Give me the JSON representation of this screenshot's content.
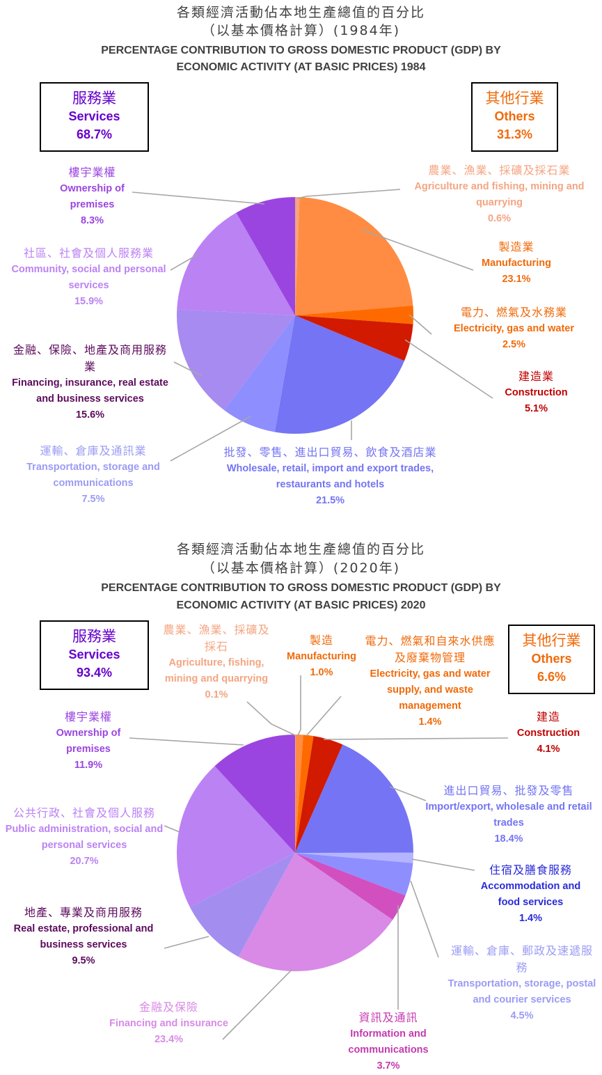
{
  "colors": {
    "services_title": "#6600cc",
    "others_title": "#f06a0a"
  },
  "chart1": {
    "title_zh_1": "各類經濟活動佔本地生產總值的百分比",
    "title_zh_2": "（以基本價格計算）(1984年)",
    "title_en_1": "PERCENTAGE CONTRIBUTION TO GROSS DOMESTIC PRODUCT (GDP) BY",
    "title_en_2": "ECONOMIC ACTIVITY (AT BASIC PRICES) 1984",
    "services_box": {
      "zh": "服務業",
      "en": "Services",
      "pct": "68.7%"
    },
    "others_box": {
      "zh": "其他行業",
      "en": "Others",
      "pct": "31.3%"
    },
    "labels": [
      {
        "zh": "農業、漁業、採礦及採石業",
        "en": "Agriculture and fishing, mining and quarrying",
        "pct": "0.6%"
      },
      {
        "zh": "製造業",
        "en": "Manufacturing",
        "pct": "23.1%"
      },
      {
        "zh": "電力、燃氣及水務業",
        "en": "Electricity, gas and water",
        "pct": "2.5%"
      },
      {
        "zh": "建造業",
        "en": "Construction",
        "pct": "5.1%"
      },
      {
        "zh": "批發、零售、進出口貿易、飲食及酒店業",
        "en": "Wholesale, retail, import and export trades, restaurants and hotels",
        "pct": "21.5%"
      },
      {
        "zh": "運輸、倉庫及通訊業",
        "en": "Transportation, storage and communications",
        "pct": "7.5%"
      },
      {
        "zh": "金融、保險、地產及商用服務業",
        "en": "Financing, insurance, real estate and business services",
        "pct": "15.6%"
      },
      {
        "zh": "社區、社會及個人服務業",
        "en": "Community, social and personal services",
        "pct": "15.9%"
      },
      {
        "zh": "樓宇業權",
        "en": "Ownership of premises",
        "pct": "8.3%"
      }
    ]
  },
  "chart2": {
    "title_zh_1": "各類經濟活動佔本地生產總值的百分比",
    "title_zh_2": "（以基本價格計算）(2020年)",
    "title_en_1": "PERCENTAGE CONTRIBUTION TO GROSS DOMESTIC PRODUCT (GDP) BY",
    "title_en_2": "ECONOMIC ACTIVITY (AT BASIC PRICES) 2020",
    "services_box": {
      "zh": "服務業",
      "en": "Services",
      "pct": "93.4%"
    },
    "others_box": {
      "zh": "其他行業",
      "en": "Others",
      "pct": "6.6%"
    },
    "labels": [
      {
        "zh": "農業、漁業、採礦及採石",
        "en": "Agriculture, fishing, mining and quarrying",
        "pct": "0.1%"
      },
      {
        "zh": "製造",
        "en": "Manufacturing",
        "pct": "1.0%"
      },
      {
        "zh": "電力、燃氣和自來水供應及廢棄物管理",
        "en": "Electricity, gas and water supply, and waste management",
        "pct": "1.4%"
      },
      {
        "zh": "建造",
        "en": "Construction",
        "pct": "4.1%"
      },
      {
        "zh": "進出口貿易、批發及零售",
        "en": "Import/export, wholesale and retail trades",
        "pct": "18.4%"
      },
      {
        "zh": "住宿及膳食服務",
        "en": "Accommodation and food services",
        "pct": "1.4%"
      },
      {
        "zh": "運輸、倉庫、郵政及速遞服務",
        "en": "Transportation, storage, postal and courier services",
        "pct": "4.5%"
      },
      {
        "zh": "資訊及通訊",
        "en": "Information and communications",
        "pct": "3.7%"
      },
      {
        "zh": "金融及保險",
        "en": "Financing and insurance",
        "pct": "23.4%"
      },
      {
        "zh": "地產、專業及商用服務",
        "en": "Real estate, professional and business services",
        "pct": "9.5%"
      },
      {
        "zh": "公共行政、社會及個人服務",
        "en": "Public administration, social and personal services",
        "pct": "20.7%"
      },
      {
        "zh": "樓宇業權",
        "en": "Ownership of premises",
        "pct": "11.9%"
      }
    ]
  },
  "chart_data": [
    {
      "type": "pie",
      "title": "PERCENTAGE CONTRIBUTION TO GROSS DOMESTIC PRODUCT (GDP) BY ECONOMIC ACTIVITY (AT BASIC PRICES) 1984",
      "categories": [
        "Agriculture and fishing, mining and quarrying",
        "Manufacturing",
        "Electricity, gas and water",
        "Construction",
        "Wholesale, retail, import and export trades, restaurants and hotels",
        "Transportation, storage and communications",
        "Financing, insurance, real estate and business services",
        "Community, social and personal services",
        "Ownership of premises"
      ],
      "values": [
        0.6,
        23.1,
        2.5,
        5.1,
        21.5,
        7.5,
        15.6,
        15.9,
        8.3
      ],
      "colors": [
        "#f4a582",
        "#ff8c42",
        "#ff6a00",
        "#d11a00",
        "#7474f4",
        "#8e8eff",
        "#a78bf0",
        "#bb82f4",
        "#9b45e0"
      ],
      "label_colors": [
        "#f4a582",
        "#f06a0a",
        "#f06a0a",
        "#c00000",
        "#7474f4",
        "#9b9bf5",
        "#5c0a5c",
        "#bb82f4",
        "#9b45e0"
      ]
    },
    {
      "type": "pie",
      "title": "PERCENTAGE CONTRIBUTION TO GROSS DOMESTIC PRODUCT (GDP) BY ECONOMIC ACTIVITY (AT BASIC PRICES) 2020",
      "categories": [
        "Agriculture, fishing, mining and quarrying",
        "Manufacturing",
        "Electricity, gas and water supply, and waste management",
        "Construction",
        "Import/export, wholesale and retail trades",
        "Accommodation and food services",
        "Transportation, storage, postal and courier services",
        "Information and communications",
        "Financing and insurance",
        "Real estate, professional and business services",
        "Public administration, social and personal services",
        "Ownership of premises"
      ],
      "values": [
        0.1,
        1.0,
        1.4,
        4.1,
        18.4,
        1.4,
        4.5,
        3.7,
        23.4,
        9.5,
        20.7,
        11.9
      ],
      "colors": [
        "#f4a582",
        "#ff8c42",
        "#ff6a00",
        "#d11a00",
        "#7474f4",
        "#b4b4ff",
        "#8e8eff",
        "#d24fc0",
        "#d88ae6",
        "#a38ef0",
        "#bb82f4",
        "#9b45e0"
      ],
      "label_colors": [
        "#f4a582",
        "#f06a0a",
        "#f06a0a",
        "#c00000",
        "#7474f4",
        "#2a2ad8",
        "#9b9bf5",
        "#c43ab0",
        "#d88ae6",
        "#5c0a5c",
        "#bb82f4",
        "#9b45e0"
      ]
    }
  ]
}
